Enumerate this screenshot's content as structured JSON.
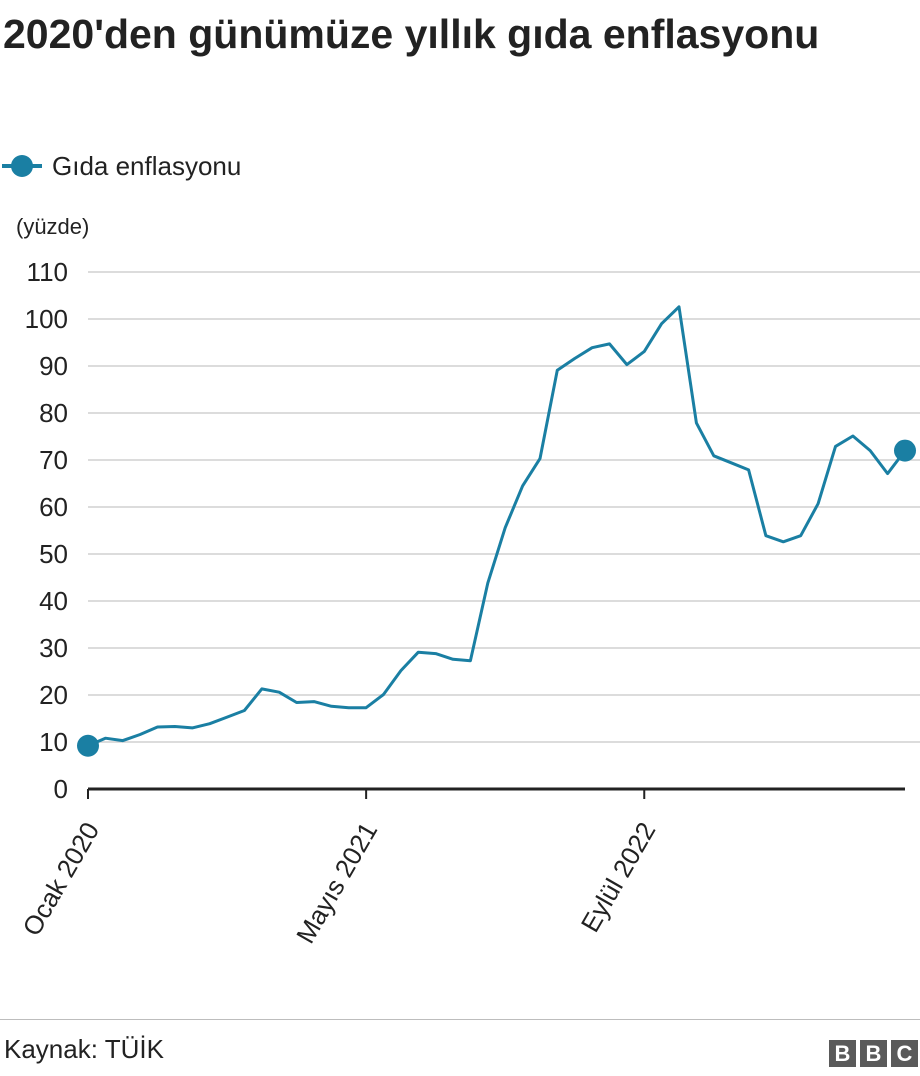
{
  "title": "2020'den günümüze yıllık gıda enflasyonu",
  "legend": {
    "label": "Gıda enflasyonu"
  },
  "unit_label": "(yüzde)",
  "source": "Kaynak: TÜİK",
  "logo": [
    "B",
    "B",
    "C"
  ],
  "colors": {
    "series": "#1a7fa3",
    "grid": "#d0d0d0",
    "axis": "#222222",
    "text": "#222222"
  },
  "chart_data": {
    "type": "line",
    "ylabel": "(yüzde)",
    "ylim": [
      0,
      110
    ],
    "y_ticks": [
      0,
      10,
      20,
      30,
      40,
      50,
      60,
      70,
      80,
      90,
      100,
      110
    ],
    "grid": "horizontal",
    "x_tick_labels": [
      {
        "label": "Ocak 2020",
        "index": 0
      },
      {
        "label": "Mayıs 2021",
        "index": 16
      },
      {
        "label": "Eylül 2022",
        "index": 32
      }
    ],
    "x": [
      "2020-01",
      "2020-02",
      "2020-03",
      "2020-04",
      "2020-05",
      "2020-06",
      "2020-07",
      "2020-08",
      "2020-09",
      "2020-10",
      "2020-11",
      "2020-12",
      "2021-01",
      "2021-02",
      "2021-03",
      "2021-04",
      "2021-05",
      "2021-06",
      "2021-07",
      "2021-08",
      "2021-09",
      "2021-10",
      "2021-11",
      "2021-12",
      "2022-01",
      "2022-02",
      "2022-03",
      "2022-04",
      "2022-05",
      "2022-06",
      "2022-07",
      "2022-08",
      "2022-09",
      "2022-10",
      "2022-11",
      "2022-12",
      "2023-01",
      "2023-02",
      "2023-03",
      "2023-04",
      "2023-05",
      "2023-06",
      "2023-07",
      "2023-08",
      "2023-09",
      "2023-10",
      "2023-11",
      "2023-12"
    ],
    "series": [
      {
        "name": "Gıda enflasyonu",
        "values": [
          9.2,
          10.8,
          10.3,
          11.6,
          13.2,
          13.3,
          13.0,
          13.9,
          15.3,
          16.7,
          21.3,
          20.6,
          18.4,
          18.6,
          17.6,
          17.3,
          17.3,
          20.1,
          25.2,
          29.1,
          28.8,
          27.6,
          27.3,
          43.8,
          55.6,
          64.5,
          70.3,
          89.1,
          91.6,
          93.9,
          94.7,
          90.3,
          93.1,
          99.0,
          102.6,
          77.9,
          70.9,
          69.4,
          67.9,
          53.9,
          52.6,
          53.9,
          60.7,
          72.9,
          75.1,
          72.0,
          67.1,
          72.0
        ]
      }
    ]
  }
}
